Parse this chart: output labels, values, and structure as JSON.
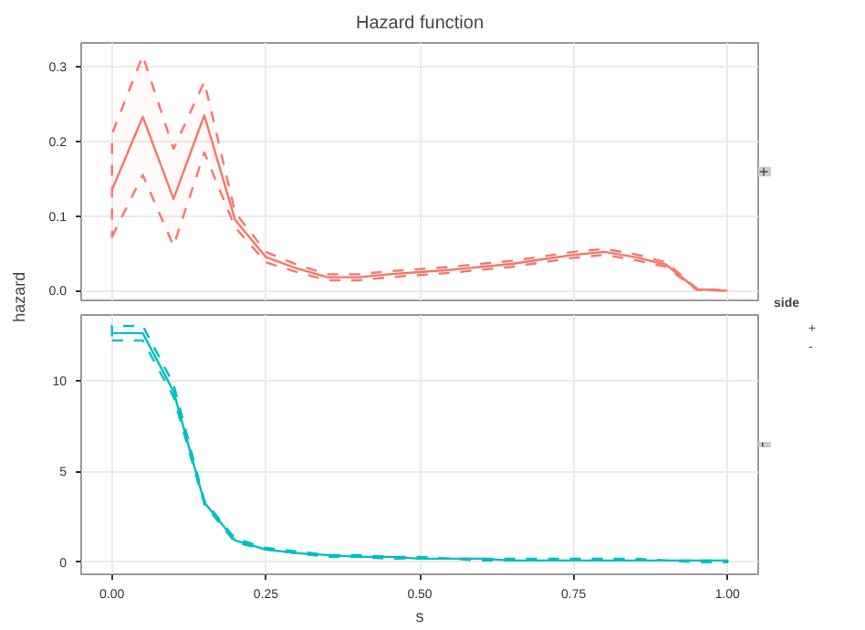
{
  "chart_data": [
    {
      "type": "line",
      "title": "Hazard function",
      "x": [
        0,
        0.05,
        0.1,
        0.15,
        0.2,
        0.25,
        0.3,
        0.35,
        0.4,
        0.45,
        0.5,
        0.55,
        0.6,
        0.65,
        0.7,
        0.75,
        0.8,
        0.85,
        0.9,
        0.95,
        1.0
      ],
      "series": [
        {
          "name": "+",
          "color": "#f8766d",
          "values": [
            0.135,
            0.233,
            0.123,
            0.235,
            0.095,
            0.045,
            0.03,
            0.018,
            0.018,
            0.022,
            0.025,
            0.028,
            0.032,
            0.036,
            0.042,
            0.048,
            0.052,
            0.045,
            0.035,
            0.002,
            0.0
          ],
          "lower": [
            0.072,
            0.155,
            0.06,
            0.185,
            0.085,
            0.038,
            0.025,
            0.014,
            0.014,
            0.018,
            0.021,
            0.024,
            0.028,
            0.032,
            0.038,
            0.044,
            0.048,
            0.041,
            0.032,
            0.001,
            0.0
          ],
          "upper": [
            0.21,
            0.315,
            0.19,
            0.28,
            0.105,
            0.052,
            0.035,
            0.022,
            0.022,
            0.026,
            0.029,
            0.032,
            0.036,
            0.04,
            0.046,
            0.052,
            0.056,
            0.049,
            0.038,
            0.003,
            0.0
          ]
        }
      ],
      "xlim": [
        -0.05,
        1.05
      ],
      "xticks": [
        {
          "value": 0,
          "label": null
        },
        {
          "value": 0.25,
          "label": null
        },
        {
          "value": 0.5,
          "label": null
        },
        {
          "value": 0.75,
          "label": null
        },
        {
          "value": 1,
          "label": null
        }
      ],
      "ylim": [
        -0.013,
        0.332
      ],
      "yticks": [
        {
          "value": 0,
          "label": "0.0"
        },
        {
          "value": 0.1,
          "label": "0.1"
        },
        {
          "value": 0.2,
          "label": "0.2"
        },
        {
          "value": 0.3,
          "label": "0.3"
        }
      ],
      "tick_labels": "y",
      "grid": true,
      "line_style": "solid"
    },
    {
      "type": "line",
      "xlabel": "s",
      "ylabel": "hazard",
      "legend_title": "side",
      "legend": "right",
      "x": [
        0,
        0.05,
        0.1,
        0.15,
        0.2,
        0.25,
        0.3,
        0.35,
        0.4,
        0.45,
        0.5,
        0.55,
        0.6,
        0.65,
        0.7,
        0.75,
        0.8,
        0.85,
        0.9,
        0.95,
        1.0
      ],
      "series": [
        {
          "name": "-",
          "color": "#00bfc4",
          "values": [
            12.6,
            12.6,
            9.4,
            3.3,
            1.2,
            0.7,
            0.5,
            0.4,
            0.3,
            0.3,
            0.2,
            0.2,
            0.2,
            0.1,
            0.1,
            0.1,
            0.1,
            0.1,
            0.1,
            0.1,
            0.1
          ],
          "lower": [
            12.2,
            12.2,
            9.1,
            3.2,
            1.1,
            0.7,
            0.5,
            0.3,
            0.3,
            0.2,
            0.2,
            0.2,
            0.1,
            0.1,
            0.1,
            0.1,
            0.1,
            0.1,
            0.1,
            0.0,
            0.0
          ],
          "upper": [
            13.0,
            13.0,
            9.8,
            3.4,
            1.3,
            0.8,
            0.6,
            0.4,
            0.4,
            0.3,
            0.3,
            0.2,
            0.2,
            0.2,
            0.2,
            0.2,
            0.2,
            0.2,
            0.1,
            0.1,
            0.1
          ]
        }
      ],
      "xlim": [
        -0.05,
        1.05
      ],
      "xticks": [
        {
          "value": 0,
          "label": "0.00"
        },
        {
          "value": 0.25,
          "label": "0.25"
        },
        {
          "value": 0.5,
          "label": "0.50"
        },
        {
          "value": 0.75,
          "label": "0.75"
        },
        {
          "value": 1,
          "label": "1.00"
        }
      ],
      "ylim": [
        -0.66,
        13.6
      ],
      "yticks": [
        0,
        5,
        10
      ],
      "grid": true,
      "line_style": "solid"
    }
  ]
}
